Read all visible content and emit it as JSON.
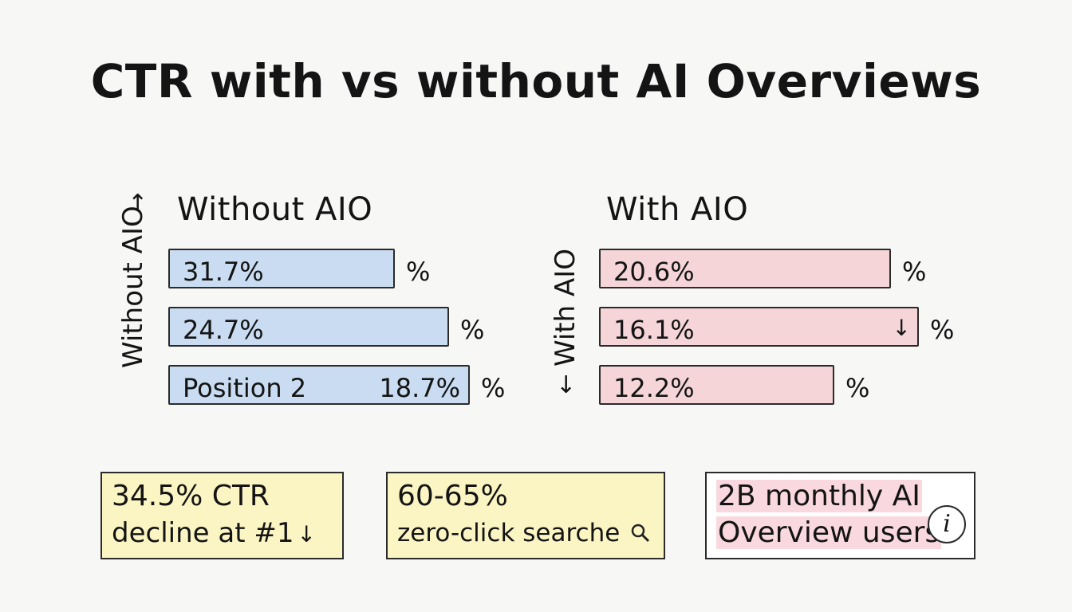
{
  "title": "CTR with vs without AI Overviews",
  "chart_data": {
    "type": "bar",
    "orientation": "horizontal",
    "panels": [
      {
        "title": "Without AIO",
        "axis_label": "Without AIO",
        "axis_arrow": "↑",
        "color": "#c9dcf1",
        "bars": [
          {
            "label": "",
            "value": 31.7,
            "value_text": "31.7%",
            "suffix": "%",
            "arrow": ""
          },
          {
            "label": "",
            "value": 24.7,
            "value_text": "24.7%",
            "suffix": "%",
            "arrow": ""
          },
          {
            "label": "Position 2",
            "value": 18.7,
            "value_text": "18.7%",
            "suffix": "%",
            "arrow": ""
          }
        ]
      },
      {
        "title": "With AIO",
        "axis_label": "With AIO",
        "axis_arrow": "↓",
        "color": "#f5d5d7",
        "bars": [
          {
            "label": "",
            "value": 20.6,
            "value_text": "20.6%",
            "suffix": "%",
            "arrow": ""
          },
          {
            "label": "",
            "value": 16.1,
            "value_text": "16.1%",
            "suffix": "%",
            "arrow": "↓"
          },
          {
            "label": "",
            "value": 12.2,
            "value_text": "12.2%",
            "suffix": "%",
            "arrow": ""
          }
        ]
      }
    ]
  },
  "cards": [
    {
      "line1": "34.5% CTR",
      "line2": "decline at #1",
      "icon": "↓",
      "icon_name": "down-arrow-icon"
    },
    {
      "line1": "60-65%",
      "line2": "zero-click searche",
      "icon": "🔍",
      "icon_name": "magnifier-icon"
    },
    {
      "line1": "2B monthly AI",
      "line2": "Overview users",
      "icon": "i",
      "icon_name": "info-icon"
    }
  ]
}
